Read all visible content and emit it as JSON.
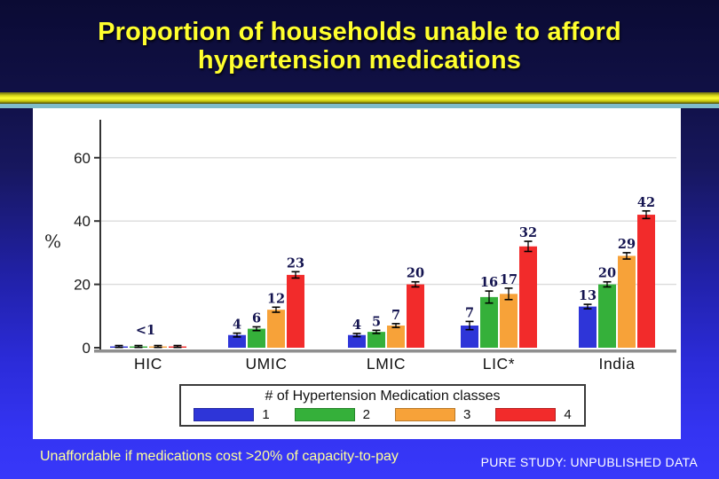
{
  "slide": {
    "title_line1": "Proportion of households unable to afford",
    "title_line2": "hypertension medications",
    "footnote": "Unaffordable if medications cost >20% of capacity-to-pay",
    "source": "PURE STUDY: UNPUBLISHED DATA"
  },
  "colors": {
    "title_yellow": "#ffff2e",
    "footnote_yellow": "#ffff99",
    "source_white": "#ffffff",
    "value_label_navy": "#141450",
    "axis_dark": "#333333",
    "x_axis_gray": "#8f8f8f",
    "gridline_gray": "#dcdcdc",
    "panel_white": "#ffffff"
  },
  "chart_data": {
    "type": "bar",
    "title": "",
    "xlabel": "",
    "ylabel": "%",
    "ylim": [
      0,
      72
    ],
    "yticks": [
      0,
      20,
      40,
      60
    ],
    "grid": true,
    "categories": [
      "HIC",
      "UMIC",
      "LMIC",
      "LIC*",
      "India"
    ],
    "series": [
      {
        "name": "1",
        "color": "#2e35d8",
        "values": [
          0.4,
          4,
          4,
          7,
          13
        ],
        "errors": [
          0.3,
          0.6,
          0.5,
          1.3,
          0.7
        ],
        "labels": [
          "",
          "4",
          "4",
          "7",
          "13"
        ]
      },
      {
        "name": "2",
        "color": "#35b03a",
        "values": [
          0.4,
          6,
          5,
          16,
          20
        ],
        "errors": [
          0.3,
          0.6,
          0.5,
          1.9,
          0.8
        ],
        "labels": [
          "",
          "6",
          "5",
          "16",
          "20"
        ]
      },
      {
        "name": "3",
        "color": "#f7a239",
        "values": [
          0.4,
          12,
          7,
          17,
          29
        ],
        "errors": [
          0.3,
          0.8,
          0.6,
          1.8,
          1.0
        ],
        "labels": [
          "",
          "12",
          "7",
          "17",
          "29"
        ]
      },
      {
        "name": "4",
        "color": "#f22b2b",
        "values": [
          0.4,
          23,
          20,
          32,
          42
        ],
        "errors": [
          0.3,
          1.0,
          0.8,
          1.6,
          1.2
        ],
        "labels": [
          "",
          "23",
          "20",
          "32",
          "42"
        ]
      }
    ],
    "group_labels": [
      "<1",
      "",
      "",
      "",
      ""
    ],
    "legend": {
      "title": "# of Hypertension Medication classes",
      "position": "bottom",
      "entries": [
        "1",
        "2",
        "3",
        "4"
      ]
    }
  }
}
